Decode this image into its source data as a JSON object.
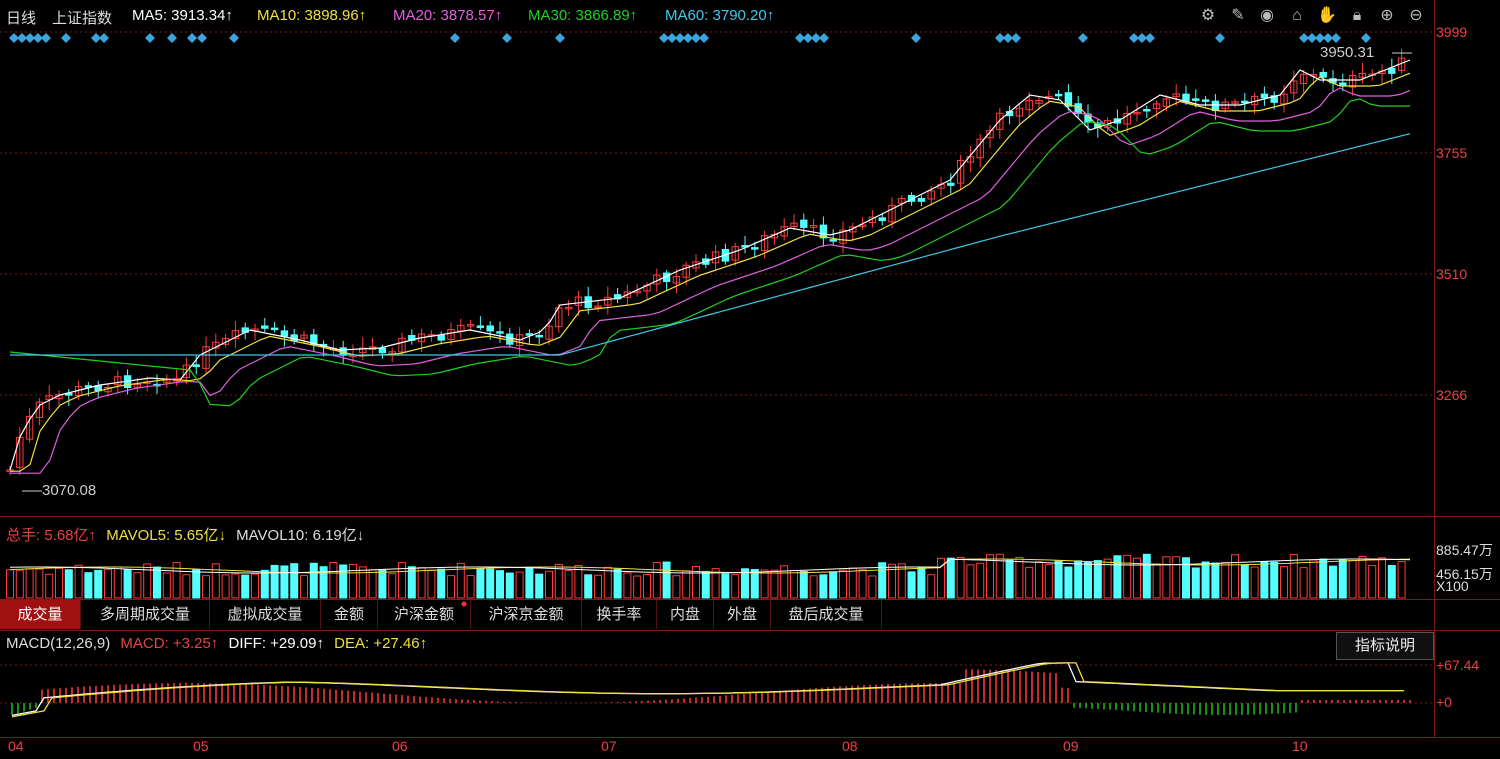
{
  "header": {
    "period": "日线",
    "index_name": "上证指数",
    "ma": [
      {
        "label": "MA5: 3913.34↑",
        "color": "#ffffff"
      },
      {
        "label": "MA10: 3898.96↑",
        "color": "#f0e040"
      },
      {
        "label": "MA20: 3878.57↑",
        "color": "#e060e0"
      },
      {
        "label": "MA30: 3866.89↑",
        "color": "#20d020"
      },
      {
        "label": "MA60: 3790.20↑",
        "color": "#40c8e8"
      }
    ]
  },
  "toolbar_icons": [
    "gear-icon",
    "pen-icon",
    "eye-icon",
    "camera-icon",
    "hand-icon",
    "lock-icon",
    "zoom-in-icon",
    "zoom-out-icon"
  ],
  "price_axis": [
    "3999",
    "3755",
    "3510",
    "3266"
  ],
  "price_markers": {
    "high": "3950.31",
    "low": "3070.08"
  },
  "volume": {
    "total_label": "总手: 5.68亿↑",
    "mavol5_label": "MAVOL5: 5.65亿↓",
    "mavol10_label": "MAVOL10: 6.19亿↓",
    "axis_top": "885.47万",
    "axis_mid": "456.15万",
    "axis_unit": "X100"
  },
  "tabs": [
    "成交量",
    "多周期成交量",
    "虚拟成交量",
    "金额",
    "沪深金额",
    "沪深京金额",
    "换手率",
    "内盘",
    "外盘",
    "盘后成交量"
  ],
  "macd": {
    "title": "MACD(12,26,9)",
    "macd_label": "MACD: +3.25↑",
    "diff_label": "DIFF: +29.09↑",
    "dea_label": "DEA: +27.46↑",
    "axis_top": "+67.44",
    "axis_zero": "+0",
    "explain_button": "指标说明"
  },
  "months": [
    "04",
    "05",
    "06",
    "07",
    "08",
    "09",
    "10"
  ],
  "colors": {
    "up": "#ff3c3c",
    "down": "#54ffff",
    "axis": "#e84343",
    "grid": "#7a1a1a"
  }
}
